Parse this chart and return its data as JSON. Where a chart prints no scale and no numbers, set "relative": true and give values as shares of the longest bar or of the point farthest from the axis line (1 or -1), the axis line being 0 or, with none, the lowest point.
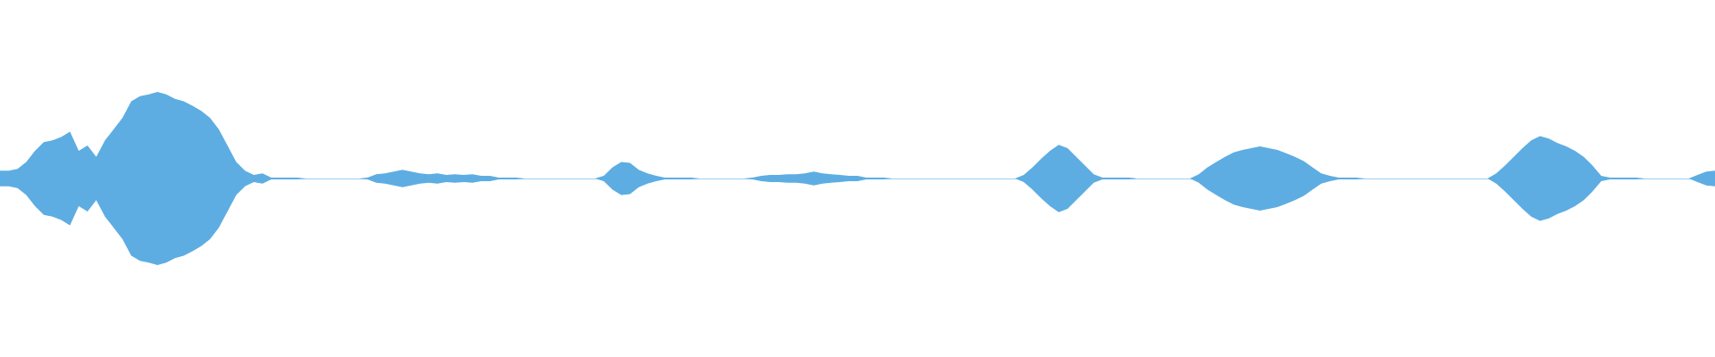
{
  "chart_data": {
    "type": "area",
    "relative": true,
    "categories": [
      null,
      null,
      null,
      null,
      null,
      null,
      null,
      null,
      null,
      null,
      null,
      null,
      null,
      null,
      null,
      null,
      null,
      null,
      null,
      null,
      null,
      null,
      null,
      null,
      null,
      null,
      null,
      null,
      null,
      null,
      null,
      null,
      null,
      null,
      null,
      null,
      null,
      null,
      null,
      null,
      null,
      null,
      null,
      null,
      null,
      null,
      null,
      null,
      null,
      null,
      null,
      null,
      null,
      null,
      null,
      null,
      null,
      null,
      null,
      null,
      null,
      null,
      null,
      null,
      null,
      null,
      null,
      null,
      null,
      null,
      null,
      null,
      null,
      null,
      null,
      null,
      null,
      null,
      null,
      null,
      null,
      null,
      null,
      null,
      null,
      null,
      null,
      null,
      null,
      null,
      null,
      null,
      null,
      null,
      null,
      null,
      null,
      null,
      null,
      null,
      null,
      null,
      null,
      null,
      null,
      null,
      null,
      null,
      null,
      null,
      null,
      null,
      null,
      null,
      null,
      null,
      null,
      null,
      null,
      null,
      null,
      null,
      null,
      null,
      null,
      null,
      null,
      null,
      null,
      null,
      null,
      null,
      null,
      null,
      null,
      null,
      null,
      null,
      null,
      null,
      null,
      null,
      null,
      null,
      null,
      null,
      null,
      null,
      null,
      null,
      null,
      null,
      null,
      null,
      null,
      null,
      null,
      null,
      null,
      null,
      null,
      null,
      null,
      null,
      null,
      null,
      null,
      null,
      null,
      null,
      null,
      null,
      null,
      null,
      null,
      null,
      null,
      null,
      null,
      null,
      null,
      null,
      null,
      null,
      null,
      null,
      null,
      null,
      null,
      null,
      null,
      null,
      null,
      null,
      null,
      null,
      null
    ],
    "series": [
      {
        "color": "#5dade2",
        "values": [
          0.09,
          0.09,
          0.11,
          0.19,
          0.32,
          0.42,
          0.44,
          0.48,
          0.54,
          0.32,
          0.38,
          0.25,
          0.44,
          0.57,
          0.7,
          0.89,
          0.95,
          0.97,
          1,
          0.97,
          0.92,
          0.89,
          0.84,
          0.78,
          0.7,
          0.57,
          0.38,
          0.19,
          0.09,
          0.04,
          0.06,
          0.01,
          0.01,
          0.01,
          0.01,
          0,
          0,
          0,
          0,
          0,
          0,
          0,
          0.01,
          0.05,
          0.06,
          0.08,
          0.1,
          0.08,
          0.06,
          0.05,
          0.06,
          0.04,
          0.05,
          0.04,
          0.05,
          0.03,
          0.03,
          0.01,
          0.01,
          0.01,
          0,
          0,
          0,
          0,
          0,
          0,
          0,
          0,
          0,
          0.03,
          0.13,
          0.19,
          0.18,
          0.1,
          0.06,
          0.03,
          0.01,
          0.01,
          0.01,
          0.01,
          0,
          0,
          0,
          0,
          0,
          0,
          0.01,
          0.03,
          0.04,
          0.04,
          0.05,
          0.05,
          0.06,
          0.08,
          0.06,
          0.05,
          0.04,
          0.03,
          0.03,
          0.01,
          0.01,
          0.01,
          0,
          0,
          0,
          0,
          0,
          0,
          0,
          0,
          0,
          0,
          0,
          0,
          0,
          0,
          0,
          0.04,
          0.13,
          0.23,
          0.32,
          0.39,
          0.35,
          0.25,
          0.15,
          0.05,
          0.01,
          0.01,
          0.01,
          0.01,
          0,
          0,
          0,
          0,
          0,
          0,
          0,
          0.05,
          0.13,
          0.19,
          0.25,
          0.3,
          0.33,
          0.35,
          0.37,
          0.35,
          0.33,
          0.29,
          0.25,
          0.2,
          0.13,
          0.06,
          0.03,
          0.01,
          0.01,
          0.01,
          0,
          0,
          0,
          0,
          0,
          0,
          0,
          0,
          0,
          0,
          0,
          0,
          0,
          0,
          0,
          0.06,
          0.15,
          0.25,
          0.35,
          0.44,
          0.49,
          0.46,
          0.41,
          0.37,
          0.32,
          0.25,
          0.15,
          0.03,
          0.01,
          0.01,
          0.01,
          0.01,
          0,
          0,
          0,
          0,
          0,
          0,
          0.04,
          0.08,
          0.09
        ]
      },
      {
        "color": "#5eade2",
        "values": [
          -0.09,
          -0.09,
          -0.11,
          -0.19,
          -0.32,
          -0.42,
          -0.44,
          -0.48,
          -0.54,
          -0.32,
          -0.38,
          -0.25,
          -0.44,
          -0.57,
          -0.7,
          -0.89,
          -0.95,
          -0.97,
          -1,
          -0.97,
          -0.92,
          -0.89,
          -0.84,
          -0.78,
          -0.7,
          -0.57,
          -0.38,
          -0.19,
          -0.09,
          -0.04,
          -0.06,
          -0.01,
          -0.01,
          -0.01,
          -0.01,
          0,
          0,
          0,
          0,
          0,
          0,
          0,
          -0.01,
          -0.05,
          -0.06,
          -0.08,
          -0.1,
          -0.08,
          -0.06,
          -0.05,
          -0.06,
          -0.04,
          -0.05,
          -0.04,
          -0.05,
          -0.03,
          -0.03,
          -0.01,
          -0.01,
          -0.01,
          0,
          0,
          0,
          0,
          0,
          0,
          0,
          0,
          0,
          -0.03,
          -0.13,
          -0.19,
          -0.18,
          -0.1,
          -0.06,
          -0.03,
          -0.01,
          -0.01,
          -0.01,
          -0.01,
          0,
          0,
          0,
          0,
          0,
          0,
          -0.01,
          -0.03,
          -0.04,
          -0.04,
          -0.05,
          -0.05,
          -0.06,
          -0.08,
          -0.06,
          -0.05,
          -0.04,
          -0.03,
          -0.03,
          -0.01,
          -0.01,
          -0.01,
          0,
          0,
          0,
          0,
          0,
          0,
          0,
          0,
          0,
          0,
          0,
          0,
          0,
          0,
          0,
          -0.04,
          -0.13,
          -0.23,
          -0.32,
          -0.39,
          -0.35,
          -0.25,
          -0.15,
          -0.05,
          -0.01,
          -0.01,
          -0.01,
          -0.01,
          0,
          0,
          0,
          0,
          0,
          0,
          0,
          -0.05,
          -0.13,
          -0.19,
          -0.25,
          -0.3,
          -0.33,
          -0.35,
          -0.37,
          -0.35,
          -0.33,
          -0.29,
          -0.25,
          -0.2,
          -0.13,
          -0.06,
          -0.03,
          -0.01,
          -0.01,
          -0.01,
          0,
          0,
          0,
          0,
          0,
          0,
          0,
          0,
          0,
          0,
          0,
          0,
          0,
          0,
          0,
          -0.06,
          -0.15,
          -0.25,
          -0.35,
          -0.44,
          -0.49,
          -0.46,
          -0.41,
          -0.37,
          -0.32,
          -0.25,
          -0.15,
          -0.03,
          -0.01,
          -0.01,
          -0.01,
          -0.01,
          0,
          0,
          0,
          0,
          0,
          0,
          -0.04,
          -0.08,
          -0.09
        ]
      }
    ]
  }
}
